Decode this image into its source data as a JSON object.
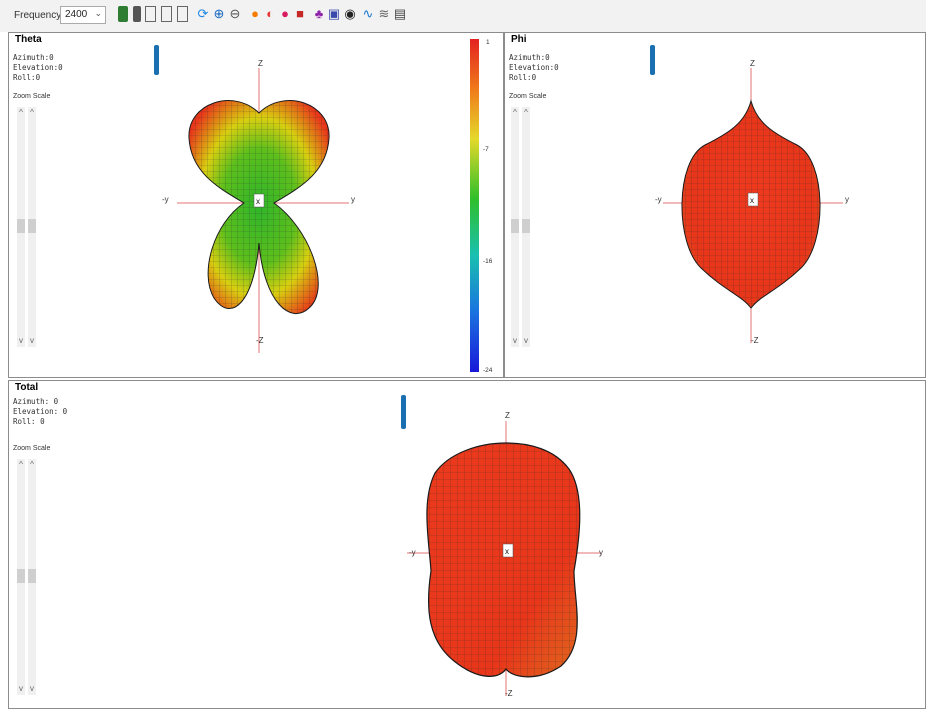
{
  "toolbar": {
    "frequency_label": "Frequency:",
    "frequency_value": "2400",
    "icons": [
      "phone-green-icon",
      "phone-icon",
      "device-outline-icon",
      "device-cut-icon",
      "device-split-icon",
      "refresh-icon",
      "zoom-in-icon",
      "zoom-out-icon",
      "color-sphere-icon",
      "half-sphere-icon",
      "sphere-icon",
      "cube-icon",
      "sheep-icon",
      "image-icon",
      "circle-icon",
      "wave-icon",
      "multiwave-icon",
      "document-icon"
    ]
  },
  "panels": {
    "theta": {
      "title": "Theta",
      "azimuth": "Azimuth:0",
      "elevation": "Elevation:0",
      "roll": "Roll:0",
      "zoom_label": "Zoom Scale"
    },
    "phi": {
      "title": "Phi",
      "azimuth": "Azimuth:0",
      "elevation": "Elevation:0",
      "roll": "Roll:0",
      "zoom_label": "Zoom Scale"
    },
    "total": {
      "title": "Total",
      "azimuth": "Azimuth: 0",
      "elevation": "Elevation: 0",
      "roll": "Roll: 0",
      "zoom_label": "Zoom Scale"
    }
  },
  "axes": {
    "z": "Z",
    "neg_z": "-Z",
    "y": "y",
    "neg_y": "-y",
    "x": "x"
  },
  "colorbar": {
    "ticks": [
      "1",
      "-7",
      "-16",
      "-24"
    ]
  },
  "colors": {
    "accent_red": "#e8361a",
    "axis_red": "#e57373",
    "toolbar_bg": "#f2f2f2"
  }
}
